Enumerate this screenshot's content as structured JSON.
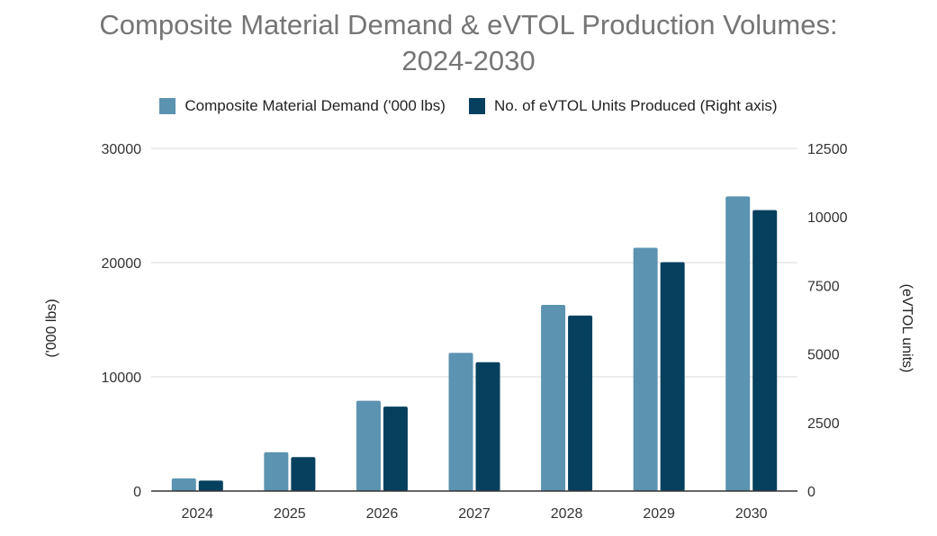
{
  "chart_data": {
    "type": "bar",
    "title_line1": "Composite Material Demand & eVTOL Production Volumes:",
    "title_line2": "2024-2030",
    "categories": [
      "2024",
      "2025",
      "2026",
      "2027",
      "2028",
      "2029",
      "2030"
    ],
    "series": [
      {
        "name": "Composite Material Demand ('000 lbs)",
        "axis": "left",
        "color": "#5b93b1",
        "values": [
          1100,
          3400,
          7900,
          12100,
          16300,
          21300,
          25800
        ]
      },
      {
        "name": "No. of eVTOL Units Produced (Right axis)",
        "axis": "right",
        "color": "#05405e",
        "values": [
          380,
          1240,
          3080,
          4700,
          6400,
          8350,
          10250
        ]
      }
    ],
    "ylabel_left": "('000 lbs)",
    "ylabel_right": "(eVTOL units)",
    "ylim_left": [
      0,
      30000
    ],
    "ylim_right": [
      0,
      12500
    ],
    "yticks_left": [
      "0",
      "10000",
      "20000",
      "30000"
    ],
    "yticks_right": [
      "0",
      "2500",
      "5000",
      "7500",
      "10000",
      "12500"
    ]
  }
}
